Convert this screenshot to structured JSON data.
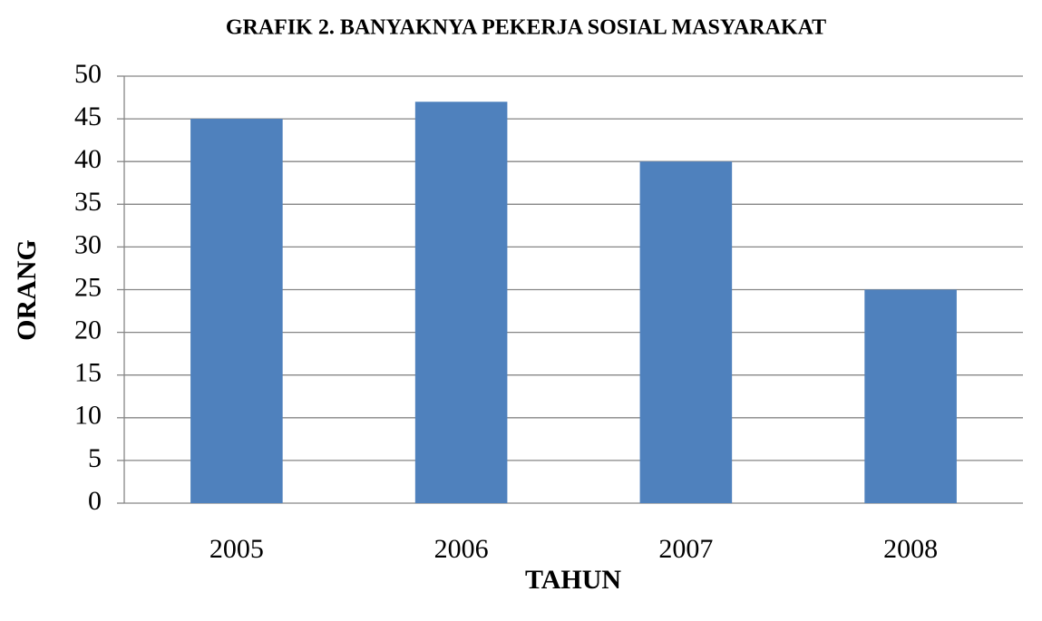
{
  "chart_data": {
    "type": "bar",
    "title": "GRAFIK 2. BANYAKNYA PEKERJA SOSIAL MASYARAKAT",
    "x_label": "TAHUN",
    "y_label": "ORANG",
    "categories": [
      "2005",
      "2006",
      "2007",
      "2008"
    ],
    "values": [
      45,
      47,
      40,
      25
    ],
    "color": "#4f81bd",
    "ylim": [
      0,
      50
    ],
    "yticks": [
      0,
      5,
      10,
      15,
      20,
      25,
      30,
      35,
      40,
      45,
      50
    ],
    "grid": true
  }
}
